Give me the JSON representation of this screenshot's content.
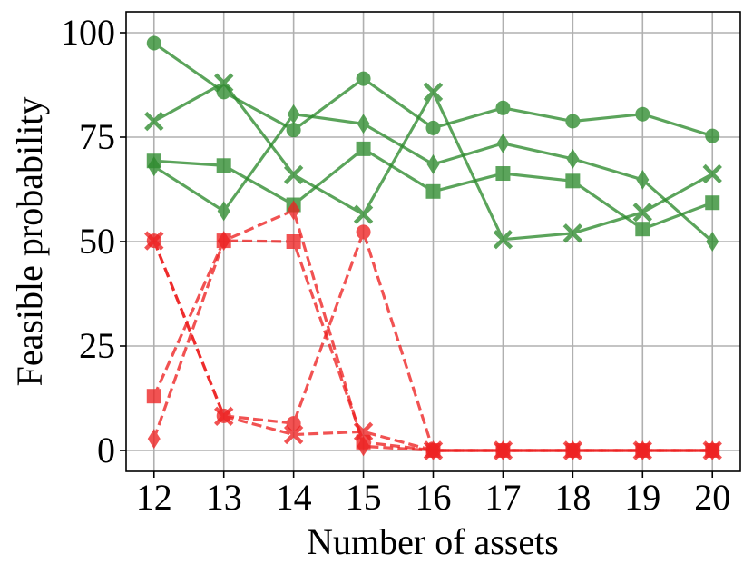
{
  "chart_data": {
    "type": "line",
    "title": "",
    "xlabel": "Number of assets",
    "ylabel": "Feasible probability",
    "xlim": [
      11.6,
      20.4
    ],
    "ylim": [
      -5,
      105
    ],
    "xticks": [
      12,
      13,
      14,
      15,
      16,
      17,
      18,
      19,
      20
    ],
    "xtick_labels": [
      "12",
      "13",
      "14",
      "15",
      "16",
      "17",
      "18",
      "19",
      "20"
    ],
    "yticks": [
      0,
      25,
      50,
      75,
      100
    ],
    "ytick_labels": [
      "0",
      "25",
      "50",
      "75",
      "100"
    ],
    "grid": true,
    "legend": "none",
    "x": [
      12,
      13,
      14,
      15,
      16,
      17,
      18,
      19,
      20
    ],
    "series": [
      {
        "marker": "circle",
        "color": "#2e8b2e",
        "linestyle": "solid",
        "values": [
          97.5,
          85.8,
          76.7,
          89.0,
          77.2,
          82.0,
          78.8,
          80.5,
          75.3
        ]
      },
      {
        "marker": "x",
        "color": "#2e8b2e",
        "linestyle": "solid",
        "values": [
          78.8,
          88.0,
          66.0,
          56.5,
          85.8,
          50.5,
          52.0,
          57.0,
          66.2
        ]
      },
      {
        "marker": "square",
        "color": "#2e8b2e",
        "linestyle": "solid",
        "values": [
          69.3,
          68.2,
          58.8,
          72.2,
          62.0,
          66.3,
          64.5,
          53.0,
          59.3
        ]
      },
      {
        "marker": "diamond",
        "color": "#2e8b2e",
        "linestyle": "solid",
        "values": [
          68.0,
          57.3,
          80.5,
          78.2,
          68.5,
          73.5,
          69.8,
          64.8,
          50.0
        ]
      },
      {
        "marker": "circle",
        "color": "#ee2222",
        "linestyle": "dashed",
        "values": [
          50.2,
          8.3,
          6.5,
          52.3,
          0,
          0,
          0,
          0,
          0
        ]
      },
      {
        "marker": "x",
        "color": "#ee2222",
        "linestyle": "dashed",
        "values": [
          50.2,
          8.2,
          3.8,
          4.5,
          0,
          0,
          0,
          0,
          0
        ]
      },
      {
        "marker": "square",
        "color": "#ee2222",
        "linestyle": "dashed",
        "values": [
          13.0,
          50.2,
          50.0,
          2.0,
          0,
          0,
          0,
          0,
          0
        ]
      },
      {
        "marker": "diamond",
        "color": "#ee2222",
        "linestyle": "dashed",
        "values": [
          2.8,
          50.2,
          57.5,
          1.0,
          0,
          0,
          0,
          0,
          0
        ]
      }
    ]
  }
}
